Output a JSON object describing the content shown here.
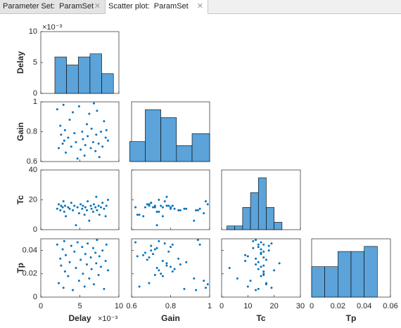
{
  "tabs": [
    "Parameter Set:  ParamSet",
    "Scatter plot:  ParamSet"
  ],
  "chart_data": {
    "type": "scatter_matrix",
    "color": "#0072bd",
    "hist_color": "#5ba3d9",
    "variables": [
      {
        "name": "Delay",
        "exponent": "×10⁻³",
        "xlim": [
          0,
          0.01
        ],
        "xticks": [
          {
            "value": 0,
            "label": "0"
          },
          {
            "value": 0.005,
            "label": "5"
          },
          {
            "value": 0.01,
            "label": "10"
          }
        ],
        "ylim": [
          0,
          0.01
        ],
        "yticks": [
          {
            "value": 0,
            "label": "0"
          },
          {
            "value": 0.005,
            "label": "5"
          },
          {
            "value": 0.01,
            "label": "10"
          }
        ],
        "bins": [
          0.0018,
          0.0033,
          0.0048,
          0.0063,
          0.0078,
          0.0093
        ],
        "counts": [
          0.0059,
          0.0046,
          0.0059,
          0.0064,
          0.0032
        ],
        "samples": [
          0.0021,
          0.0023,
          0.0025,
          0.0026,
          0.0028,
          0.0029,
          0.003,
          0.0031,
          0.0032,
          0.0035,
          0.0037,
          0.0039,
          0.0041,
          0.0043,
          0.0045,
          0.0047,
          0.0049,
          0.0051,
          0.0053,
          0.0054,
          0.0056,
          0.0057,
          0.0059,
          0.006,
          0.0062,
          0.0064,
          0.0065,
          0.0067,
          0.0068,
          0.007,
          0.0071,
          0.0072,
          0.0074,
          0.0075,
          0.0077,
          0.0079,
          0.0081,
          0.0083,
          0.0084,
          0.0086
        ]
      },
      {
        "name": "Gain",
        "xlim": [
          0.6,
          1
        ],
        "xticks": [
          0.6,
          0.8,
          1
        ],
        "ylim": [
          0.6,
          1
        ],
        "yticks": [
          0.6,
          0.8,
          1
        ],
        "bins": [
          0.59,
          0.67,
          0.75,
          0.83,
          0.91,
          1.0
        ],
        "counts": [
          5,
          13,
          11,
          4,
          7
        ],
        "samples": [
          0.95,
          0.69,
          0.84,
          0.78,
          0.72,
          0.98,
          0.74,
          0.81,
          0.66,
          0.76,
          0.88,
          0.7,
          0.93,
          0.79,
          0.73,
          0.62,
          0.97,
          0.68,
          0.8,
          0.75,
          0.64,
          0.71,
          0.85,
          0.77,
          0.92,
          0.69,
          0.82,
          0.73,
          0.99,
          0.67,
          0.78,
          0.94,
          0.72,
          0.63,
          0.8,
          0.7,
          0.87,
          0.76,
          0.81,
          0.74
        ]
      },
      {
        "name": "Tc",
        "xlim": [
          0,
          30
        ],
        "xticks": [
          0,
          10,
          20,
          30
        ],
        "ylim": [
          0,
          40
        ],
        "yticks": [
          0,
          20,
          40
        ],
        "bins": [
          2,
          5,
          8,
          11,
          14,
          17,
          20,
          23
        ],
        "counts": [
          1,
          1,
          6,
          10,
          14,
          6,
          2
        ],
        "samples": [
          14,
          17,
          13,
          16,
          15,
          19,
          12,
          16,
          9,
          15,
          14,
          18,
          13,
          16,
          3,
          15,
          11,
          17,
          14,
          16,
          10,
          15,
          13,
          19,
          6,
          16,
          14,
          12,
          17,
          15,
          22,
          13,
          16,
          10,
          15,
          18,
          14,
          9,
          16,
          20
        ]
      },
      {
        "name": "Tp",
        "xlim": [
          0,
          0.06
        ],
        "xticks": [
          0,
          0.02,
          0.04,
          0.06
        ],
        "ylim": [
          0,
          0.05
        ],
        "yticks": [
          0,
          0.02,
          0.04
        ],
        "bins": [
          0,
          0.01,
          0.02,
          0.03,
          0.04,
          0.05
        ],
        "counts": [
          6,
          6,
          9,
          9,
          10
        ],
        "samples": [
          0.045,
          0.012,
          0.033,
          0.027,
          0.041,
          0.008,
          0.048,
          0.022,
          0.036,
          0.018,
          0.03,
          0.044,
          0.006,
          0.039,
          0.025,
          0.047,
          0.014,
          0.032,
          0.043,
          0.02,
          0.009,
          0.037,
          0.028,
          0.046,
          0.016,
          0.034,
          0.024,
          0.042,
          0.011,
          0.038,
          0.029,
          0.049,
          0.019,
          0.035,
          0.026,
          0.04,
          0.007,
          0.031,
          0.045,
          0.023
        ]
      }
    ]
  }
}
